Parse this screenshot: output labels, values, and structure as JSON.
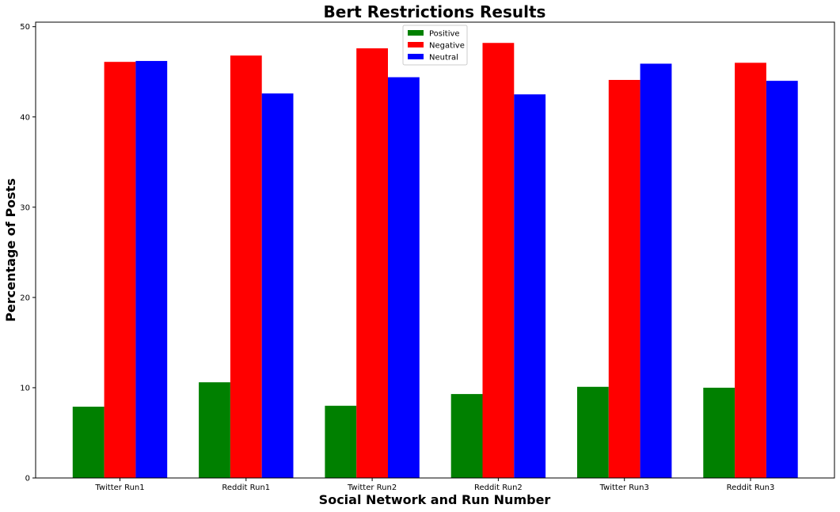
{
  "chart_data": {
    "type": "bar",
    "title": "Bert Restrictions Results",
    "xlabel": "Social Network and Run Number",
    "ylabel": "Percentage of Posts",
    "categories": [
      "Twitter Run1",
      "Reddit Run1",
      "Twitter Run2",
      "Reddit Run2",
      "Twitter Run3",
      "Reddit Run3"
    ],
    "ylim": [
      0,
      50.5
    ],
    "yticks": [
      0,
      10,
      20,
      30,
      40,
      50
    ],
    "grid": false,
    "legend_position": "top-center",
    "series": [
      {
        "name": "Positive",
        "color": "#008000",
        "values": [
          7.9,
          10.6,
          8.0,
          9.3,
          10.1,
          10.0
        ]
      },
      {
        "name": "Negative",
        "color": "#ff0000",
        "values": [
          46.1,
          46.8,
          47.6,
          48.2,
          44.1,
          46.0
        ]
      },
      {
        "name": "Neutral",
        "color": "#0000ff",
        "values": [
          46.2,
          42.6,
          44.4,
          42.5,
          45.9,
          44.0
        ]
      }
    ]
  }
}
